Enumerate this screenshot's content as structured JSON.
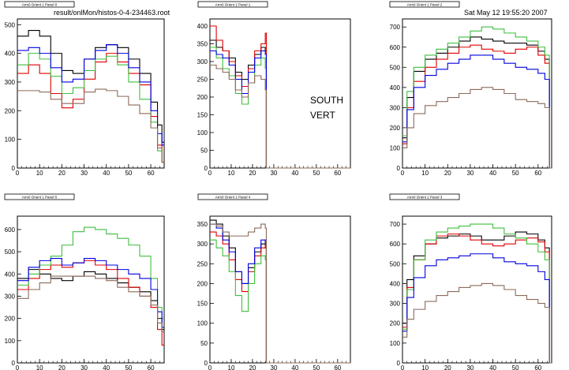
{
  "header": {
    "file_path": "result/onlMon/histos-0-4-234463.root",
    "timestamp": "Sat May 12 19:55:20 2007"
  },
  "annotation": {
    "line1": "SOUTH",
    "line2": "VERT"
  },
  "colors": {
    "black": "#000000",
    "red": "#e00000",
    "green": "#3fbf3f",
    "blue": "#0000e0",
    "brown": "#8b6a5a"
  },
  "chart_data": [
    {
      "type": "line",
      "title": "Arm0 Orient 1 Panel 0",
      "xlim": [
        0,
        66
      ],
      "ylim": [
        0,
        520
      ],
      "xticks": [
        0,
        10,
        20,
        30,
        40,
        50,
        60
      ],
      "yticks": [
        0,
        100,
        200,
        300,
        400,
        500
      ],
      "x": [
        0,
        5,
        10,
        15,
        20,
        25,
        30,
        35,
        40,
        45,
        50,
        55,
        60,
        63,
        65
      ],
      "series": [
        {
          "color": "black",
          "values": [
            460,
            480,
            460,
            400,
            340,
            330,
            380,
            420,
            430,
            420,
            380,
            330,
            230,
            150,
            90
          ]
        },
        {
          "color": "red",
          "values": [
            330,
            360,
            330,
            260,
            210,
            240,
            310,
            370,
            400,
            370,
            330,
            290,
            180,
            80,
            20
          ]
        },
        {
          "color": "green",
          "values": [
            360,
            400,
            380,
            320,
            260,
            280,
            340,
            380,
            390,
            360,
            300,
            240,
            160,
            60,
            20
          ]
        },
        {
          "color": "blue",
          "values": [
            410,
            420,
            400,
            350,
            300,
            310,
            380,
            410,
            430,
            400,
            350,
            300,
            200,
            120,
            80
          ]
        },
        {
          "color": "brown",
          "values": [
            270,
            270,
            265,
            240,
            225,
            225,
            265,
            275,
            270,
            250,
            220,
            190,
            140,
            70,
            20
          ]
        }
      ]
    },
    {
      "type": "line",
      "title": "Arm0 Orient 1 Panel 1",
      "xlim": [
        0,
        66
      ],
      "ylim": [
        0,
        420
      ],
      "xticks": [
        0,
        10,
        20,
        30,
        40,
        50,
        60
      ],
      "yticks": [
        0,
        50,
        100,
        150,
        200,
        250,
        300,
        350,
        400
      ],
      "x": [
        0,
        3,
        6,
        9,
        12,
        15,
        18,
        21,
        24,
        26,
        26.5,
        66
      ],
      "series": [
        {
          "color": "black",
          "values": [
            360,
            340,
            330,
            310,
            270,
            250,
            290,
            320,
            340,
            330,
            0,
            0
          ]
        },
        {
          "color": "red",
          "values": [
            400,
            360,
            330,
            300,
            260,
            230,
            280,
            330,
            350,
            380,
            0,
            0
          ]
        },
        {
          "color": "green",
          "values": [
            340,
            310,
            280,
            260,
            210,
            180,
            240,
            290,
            310,
            280,
            0,
            0
          ]
        },
        {
          "color": "blue",
          "values": [
            330,
            320,
            310,
            290,
            250,
            210,
            270,
            310,
            330,
            320,
            0,
            0
          ]
        },
        {
          "color": "brown",
          "values": [
            290,
            280,
            270,
            250,
            220,
            200,
            240,
            260,
            250,
            220,
            0,
            0
          ]
        }
      ]
    },
    {
      "type": "line",
      "title": "Arm0 Orient 1 Panel 2",
      "xlim": [
        0,
        66
      ],
      "ylim": [
        0,
        740
      ],
      "xticks": [
        0,
        10,
        20,
        30,
        40,
        50,
        60
      ],
      "yticks": [
        0,
        100,
        200,
        300,
        400,
        500,
        600,
        700
      ],
      "x": [
        0,
        2,
        5,
        10,
        15,
        20,
        25,
        30,
        35,
        40,
        45,
        50,
        55,
        60,
        63,
        65
      ],
      "series": [
        {
          "color": "black",
          "values": [
            150,
            350,
            480,
            540,
            570,
            600,
            630,
            650,
            640,
            630,
            620,
            620,
            610,
            580,
            540,
            0
          ]
        },
        {
          "color": "red",
          "values": [
            120,
            300,
            430,
            500,
            540,
            570,
            600,
            610,
            590,
            580,
            570,
            590,
            600,
            560,
            520,
            0
          ]
        },
        {
          "color": "green",
          "values": [
            160,
            380,
            500,
            560,
            590,
            620,
            650,
            680,
            700,
            690,
            670,
            650,
            630,
            600,
            560,
            0
          ]
        },
        {
          "color": "blue",
          "values": [
            130,
            290,
            400,
            460,
            490,
            520,
            540,
            560,
            560,
            540,
            520,
            500,
            490,
            470,
            440,
            0
          ]
        },
        {
          "color": "brown",
          "values": [
            100,
            200,
            270,
            310,
            330,
            350,
            370,
            390,
            400,
            390,
            370,
            340,
            330,
            320,
            300,
            0
          ]
        }
      ]
    },
    {
      "type": "line",
      "title": "Arm0 Orient 1 Panel 5",
      "xlim": [
        0,
        66
      ],
      "ylim": [
        0,
        660
      ],
      "xticks": [
        0,
        10,
        20,
        30,
        40,
        50,
        60
      ],
      "yticks": [
        0,
        100,
        200,
        300,
        400,
        500,
        600
      ],
      "x": [
        0,
        5,
        10,
        15,
        20,
        25,
        30,
        35,
        40,
        45,
        50,
        55,
        60,
        63,
        65
      ],
      "series": [
        {
          "color": "black",
          "values": [
            380,
            420,
            400,
            380,
            370,
            390,
            410,
            400,
            380,
            360,
            340,
            320,
            280,
            200,
            150
          ]
        },
        {
          "color": "red",
          "values": [
            330,
            380,
            420,
            440,
            430,
            450,
            460,
            440,
            420,
            380,
            340,
            300,
            250,
            150,
            80
          ]
        },
        {
          "color": "green",
          "values": [
            350,
            400,
            440,
            480,
            530,
            590,
            610,
            600,
            580,
            560,
            530,
            480,
            380,
            250,
            200
          ]
        },
        {
          "color": "blue",
          "values": [
            370,
            430,
            460,
            470,
            440,
            450,
            470,
            460,
            440,
            420,
            400,
            380,
            330,
            230,
            160
          ]
        },
        {
          "color": "brown",
          "values": [
            290,
            330,
            360,
            390,
            390,
            390,
            390,
            380,
            370,
            340,
            320,
            300,
            260,
            180,
            140
          ]
        }
      ]
    },
    {
      "type": "line",
      "title": "Arm0 Orient 1 Panel 4",
      "xlim": [
        0,
        66
      ],
      "ylim": [
        0,
        370
      ],
      "xticks": [
        0,
        10,
        20,
        30,
        40,
        50,
        60
      ],
      "yticks": [
        0,
        50,
        100,
        150,
        200,
        250,
        300,
        350
      ],
      "x": [
        0,
        3,
        6,
        9,
        12,
        15,
        18,
        21,
        24,
        26,
        26.5,
        66
      ],
      "series": [
        {
          "color": "black",
          "values": [
            360,
            350,
            320,
            290,
            230,
            200,
            240,
            280,
            300,
            290,
            0,
            0
          ]
        },
        {
          "color": "red",
          "values": [
            330,
            320,
            300,
            260,
            210,
            180,
            230,
            270,
            290,
            310,
            0,
            0
          ]
        },
        {
          "color": "green",
          "values": [
            310,
            290,
            270,
            230,
            170,
            130,
            200,
            250,
            270,
            260,
            0,
            0
          ]
        },
        {
          "color": "blue",
          "values": [
            350,
            340,
            310,
            280,
            230,
            200,
            250,
            290,
            310,
            300,
            0,
            0
          ]
        },
        {
          "color": "brown",
          "values": [
            350,
            345,
            330,
            320,
            320,
            320,
            330,
            340,
            350,
            340,
            0,
            0
          ]
        }
      ]
    },
    {
      "type": "line",
      "title": "Arm0 Orient 1 Panel 3",
      "xlim": [
        0,
        66
      ],
      "ylim": [
        0,
        740
      ],
      "xticks": [
        0,
        10,
        20,
        30,
        40,
        50,
        60
      ],
      "yticks": [
        0,
        100,
        200,
        300,
        400,
        500,
        600,
        700
      ],
      "x": [
        0,
        2,
        5,
        10,
        15,
        20,
        25,
        30,
        35,
        40,
        45,
        50,
        55,
        60,
        63,
        65
      ],
      "series": [
        {
          "color": "black",
          "values": [
            200,
            420,
            540,
            600,
            630,
            640,
            650,
            640,
            620,
            620,
            640,
            660,
            650,
            620,
            580,
            0
          ]
        },
        {
          "color": "red",
          "values": [
            180,
            380,
            520,
            600,
            640,
            650,
            640,
            620,
            600,
            590,
            600,
            620,
            630,
            610,
            560,
            0
          ]
        },
        {
          "color": "green",
          "values": [
            170,
            370,
            520,
            620,
            660,
            680,
            690,
            700,
            700,
            680,
            650,
            630,
            600,
            560,
            520,
            0
          ]
        },
        {
          "color": "blue",
          "values": [
            160,
            330,
            430,
            490,
            520,
            530,
            540,
            550,
            550,
            530,
            510,
            500,
            490,
            460,
            420,
            0
          ]
        },
        {
          "color": "brown",
          "values": [
            130,
            220,
            270,
            310,
            340,
            360,
            380,
            390,
            400,
            390,
            370,
            340,
            320,
            300,
            280,
            0
          ]
        }
      ]
    }
  ]
}
